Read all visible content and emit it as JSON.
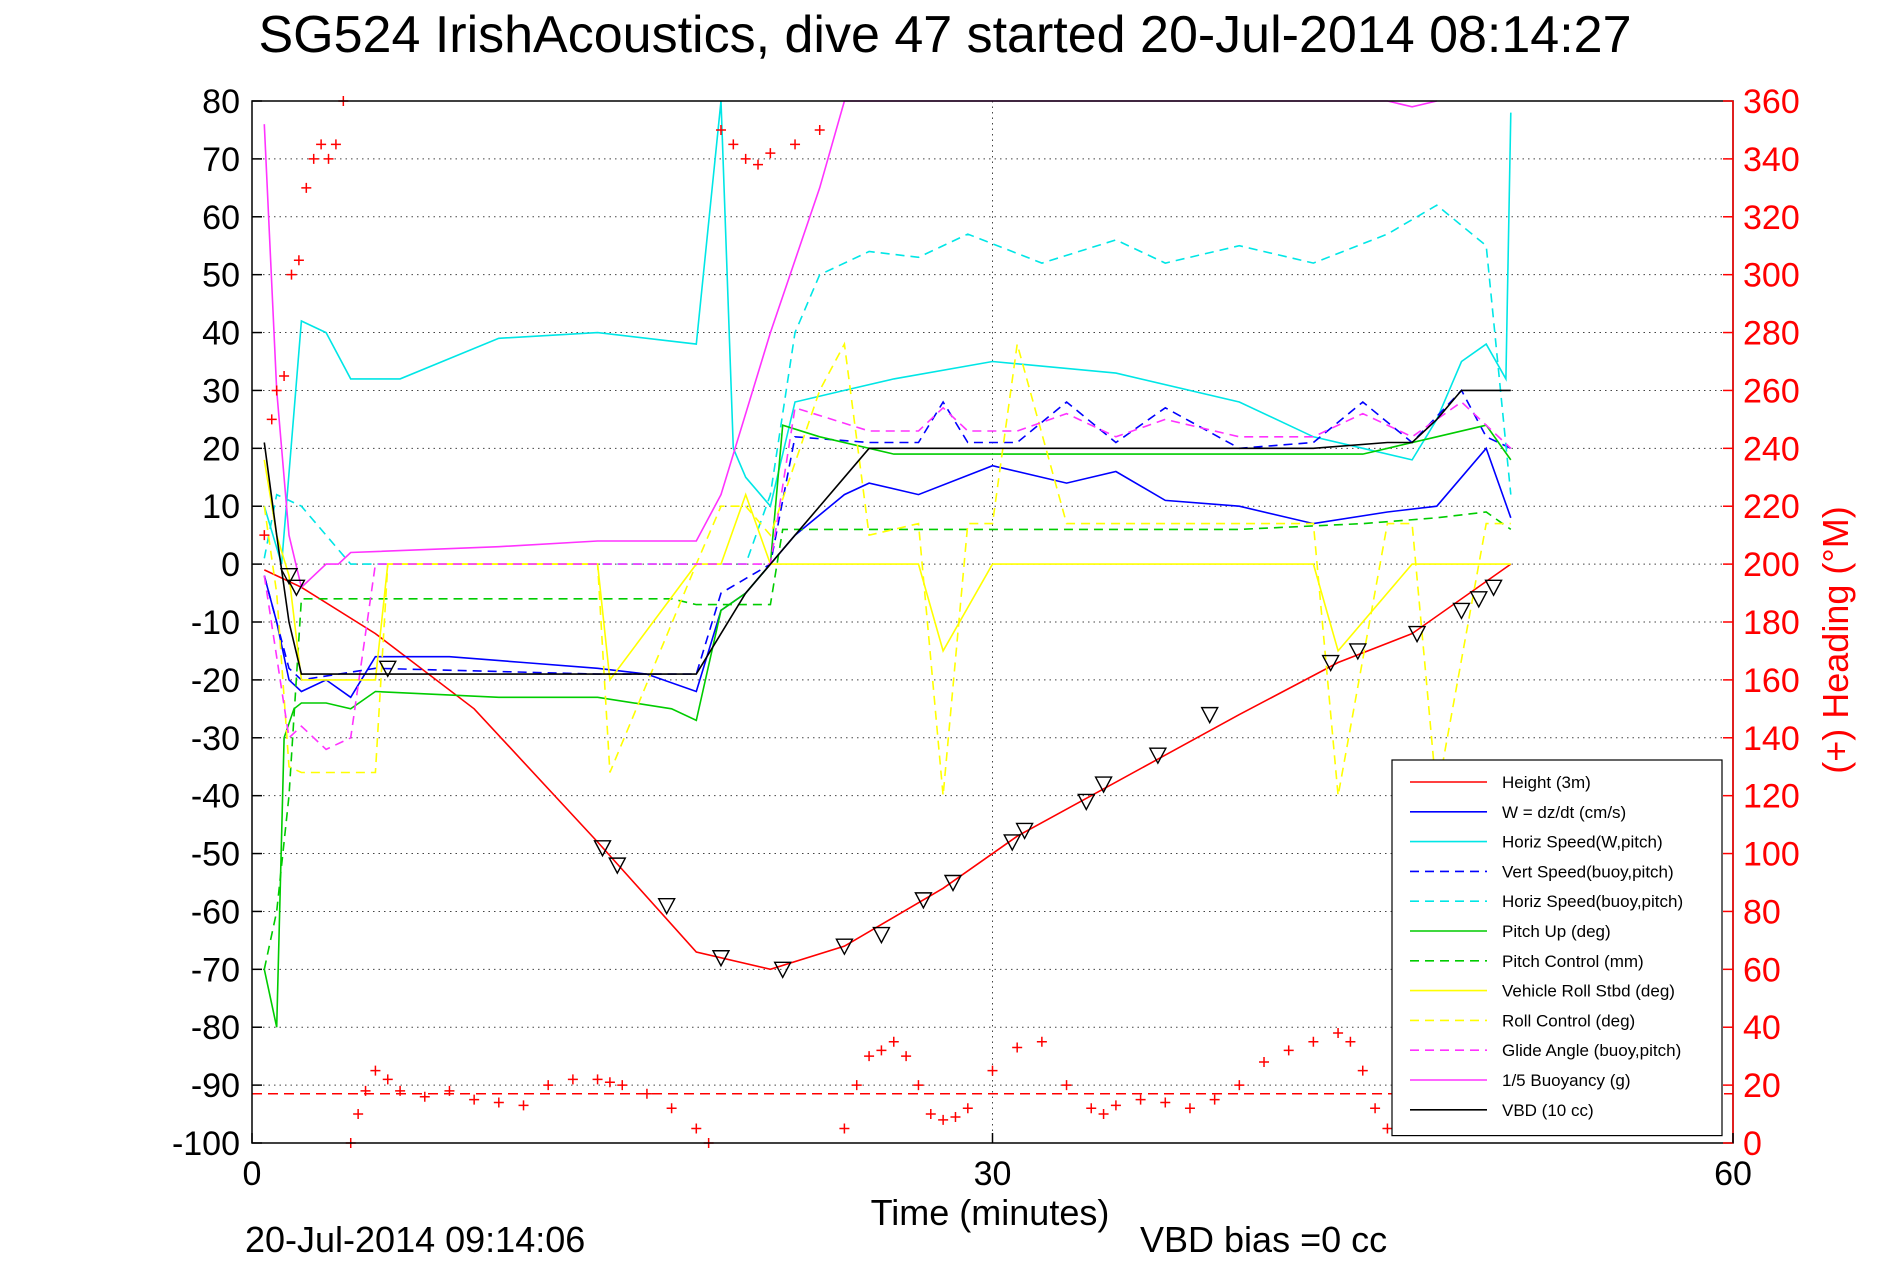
{
  "chart_data": {
    "type": "line",
    "title": "SG524 IrishAcoustics, dive 47 started 20-Jul-2014 08:14:27",
    "xlabel": "Time (minutes)",
    "ylabel_right": "(+) Heading (°M)",
    "footer_left": "20-Jul-2014 09:14:06",
    "footer_right": "VBD bias =0 cc",
    "xlim": [
      0,
      60
    ],
    "ylim": [
      -100,
      80
    ],
    "ylim_right": [
      0,
      360
    ],
    "xticks": [
      "0",
      "30",
      "60"
    ],
    "xtick_values": [
      0,
      30,
      60
    ],
    "yticks": [
      "80",
      "70",
      "60",
      "50",
      "40",
      "30",
      "20",
      "10",
      "0",
      "-10",
      "-20",
      "-30",
      "-40",
      "-50",
      "-60",
      "-70",
      "-80",
      "-90",
      "-100"
    ],
    "ytick_values": [
      80,
      70,
      60,
      50,
      40,
      30,
      20,
      10,
      0,
      -10,
      -20,
      -30,
      -40,
      -50,
      -60,
      -70,
      -80,
      -90,
      -100
    ],
    "yticks_right": [
      "360",
      "340",
      "320",
      "300",
      "280",
      "260",
      "240",
      "220",
      "200",
      "180",
      "160",
      "140",
      "120",
      "100",
      "80",
      "60",
      "40",
      "20",
      "0"
    ],
    "ytick_right_values": [
      360,
      340,
      320,
      300,
      280,
      260,
      240,
      220,
      200,
      180,
      160,
      140,
      120,
      100,
      80,
      60,
      40,
      20,
      0
    ],
    "grid": true,
    "legend_position": "lower-right",
    "reference_line_y": -91.5,
    "series": [
      {
        "name": "Height (3m)",
        "color": "#ff0000",
        "style": "solid",
        "x": [
          0.5,
          2,
          5,
          9,
          14,
          18,
          21,
          24,
          28,
          31,
          34,
          37,
          40,
          44,
          47,
          51
        ],
        "y": [
          -1,
          -4,
          -12,
          -25,
          -48,
          -67,
          -70,
          -66,
          -56,
          -47,
          -40,
          -33,
          -26,
          -17,
          -12,
          0
        ]
      },
      {
        "name": "W = dz/dt (cm/s)",
        "color": "#0000ff",
        "style": "solid",
        "x": [
          0.5,
          1,
          1.5,
          2,
          3,
          4,
          5,
          8,
          11,
          14,
          16,
          18,
          19,
          20,
          21,
          22,
          24,
          25,
          27,
          30,
          33,
          35,
          37,
          40,
          43,
          46,
          48,
          50,
          51
        ],
        "y": [
          -2,
          -10,
          -20,
          -22,
          -20,
          -23,
          -16,
          -16,
          -17,
          -18,
          -19,
          -22,
          -8,
          -5,
          0,
          5,
          12,
          14,
          12,
          17,
          14,
          16,
          11,
          10,
          7,
          9,
          10,
          20,
          8
        ]
      },
      {
        "name": "Horiz Speed(W,pitch)",
        "color": "#00e6e6",
        "style": "solid",
        "x": [
          0.5,
          1.2,
          2,
          3,
          4,
          6,
          10,
          14,
          18,
          19,
          19.5,
          20,
          21,
          22,
          24,
          26,
          30,
          35,
          40,
          43,
          45,
          47,
          48,
          49,
          50,
          50.8,
          51
        ],
        "y": [
          10,
          0,
          42,
          40,
          32,
          32,
          39,
          40,
          38,
          80,
          20,
          15,
          10,
          28,
          30,
          32,
          35,
          33,
          28,
          22,
          20,
          18,
          25,
          35,
          38,
          32,
          78
        ]
      },
      {
        "name": "Vert Speed(buoy,pitch)",
        "color": "#0000ff",
        "style": "dashed",
        "x": [
          0.5,
          1.5,
          2,
          5,
          14,
          18,
          19,
          21,
          22,
          25,
          27,
          28,
          29,
          31,
          33,
          35,
          37,
          40,
          43,
          45,
          47,
          49,
          50,
          51
        ],
        "y": [
          -2,
          -18,
          -20,
          -18,
          -19,
          -19,
          -5,
          0,
          22,
          21,
          21,
          28,
          21,
          21,
          28,
          21,
          27,
          20,
          21,
          28,
          21,
          30,
          22,
          20
        ]
      },
      {
        "name": "Horiz Speed(buoy,pitch)",
        "color": "#00e6e6",
        "style": "dashed",
        "x": [
          0.5,
          1,
          2,
          4,
          6,
          10,
          14,
          18,
          19,
          20,
          21,
          22,
          23,
          25,
          27,
          29,
          32,
          35,
          37,
          40,
          43,
          46,
          48,
          50,
          51
        ],
        "y": [
          1,
          12,
          10,
          0,
          0,
          0,
          0,
          0,
          0,
          0,
          12,
          40,
          50,
          54,
          53,
          57,
          52,
          56,
          52,
          55,
          52,
          57,
          62,
          55,
          12
        ]
      },
      {
        "name": "Pitch Up (deg)",
        "color": "#00cc00",
        "style": "solid",
        "x": [
          0.5,
          1,
          1.3,
          1.7,
          2,
          3,
          4,
          5,
          10,
          14,
          17,
          18,
          19,
          20,
          21,
          21.5,
          23,
          26,
          30,
          35,
          40,
          45,
          48,
          50,
          51
        ],
        "y": [
          -70,
          -80,
          -30,
          -25,
          -24,
          -24,
          -25,
          -22,
          -23,
          -23,
          -25,
          -27,
          -8,
          -5,
          0,
          24,
          22,
          19,
          19,
          19,
          19,
          19,
          22,
          24,
          18
        ]
      },
      {
        "name": "Pitch Control (mm)",
        "color": "#00cc00",
        "style": "dashed",
        "x": [
          0.5,
          1,
          1.5,
          2,
          3,
          5,
          14,
          17,
          18,
          19,
          20,
          21,
          21.5,
          25,
          30,
          35,
          40,
          45,
          48,
          50,
          51
        ],
        "y": [
          -70,
          -60,
          -40,
          -6,
          -6,
          -6,
          -6,
          -6,
          -7,
          -7,
          -7,
          -7,
          6,
          6,
          6,
          6,
          6,
          7,
          8,
          9,
          6
        ]
      },
      {
        "name": "Vehicle Roll Stbd (deg)",
        "color": "#ffff00",
        "style": "solid",
        "x": [
          0.5,
          1,
          1.5,
          2,
          3,
          5,
          5.5,
          10,
          14,
          14.5,
          18,
          19,
          20,
          21,
          25,
          27,
          28,
          30,
          33,
          35,
          40,
          43,
          44,
          47,
          48,
          50,
          51
        ],
        "y": [
          18,
          5,
          -2,
          -20,
          -20,
          -20,
          0,
          0,
          0,
          -20,
          0,
          0,
          12,
          0,
          0,
          0,
          -15,
          0,
          0,
          0,
          0,
          0,
          -15,
          0,
          0,
          0,
          0
        ]
      },
      {
        "name": "Roll Control (deg)",
        "color": "#ffff00",
        "style": "dashed",
        "x": [
          0.5,
          1,
          1.5,
          2,
          4,
          5,
          5.5,
          10,
          14,
          14.5,
          18,
          19,
          20,
          21,
          23,
          24,
          25,
          27,
          28,
          29,
          30,
          31,
          33,
          35,
          40,
          43,
          44,
          46,
          47,
          48,
          50,
          51
        ],
        "y": [
          10,
          -5,
          -35,
          -36,
          -36,
          -36,
          0,
          0,
          0,
          -36,
          0,
          10,
          10,
          5,
          30,
          38,
          5,
          7,
          -40,
          7,
          7,
          38,
          7,
          7,
          7,
          7,
          -40,
          7,
          7,
          -40,
          7,
          7
        ]
      },
      {
        "name": "Glide Angle (buoy,pitch)",
        "color": "#ff33ff",
        "style": "dashed",
        "x": [
          0.5,
          1.5,
          2,
          3,
          4,
          5,
          14,
          18,
          19,
          21,
          22,
          25,
          27,
          28,
          29,
          31,
          33,
          35,
          37,
          40,
          43,
          45,
          47,
          49,
          50,
          51
        ],
        "y": [
          -2,
          -30,
          -28,
          -32,
          -30,
          0,
          0,
          0,
          0,
          0,
          27,
          23,
          23,
          27,
          23,
          23,
          26,
          22,
          25,
          22,
          22,
          26,
          22,
          28,
          24,
          20
        ]
      },
      {
        "name": "1/5 Buoyancy (g)",
        "color": "#ff33ff",
        "style": "solid",
        "x": [
          0.5,
          1,
          1.5,
          2,
          3,
          3.5,
          4,
          10,
          14,
          18,
          19,
          21,
          23,
          24,
          46,
          47,
          48
        ],
        "y": [
          76,
          30,
          5,
          -4,
          0,
          0,
          2,
          3,
          4,
          4,
          12,
          40,
          65,
          80,
          80,
          79,
          80
        ]
      },
      {
        "name": "VBD (10 cc)",
        "color": "#000000",
        "style": "solid",
        "x": [
          0.5,
          1,
          1.5,
          2,
          5,
          10,
          14,
          18,
          19,
          20,
          21,
          22,
          24,
          25,
          30,
          35,
          40,
          43,
          46,
          47,
          48,
          49,
          50,
          51
        ],
        "y": [
          21,
          5,
          -10,
          -19,
          -19,
          -19,
          -19,
          -19,
          -12,
          -5,
          0,
          5,
          15,
          20,
          20,
          20,
          20,
          20,
          21,
          21,
          25,
          30,
          30,
          30
        ]
      }
    ],
    "heading_series": {
      "axis": "right",
      "color": "#ff0000",
      "marker": "+",
      "x": [
        0.5,
        0.8,
        1.0,
        1.3,
        1.6,
        1.9,
        2.2,
        2.5,
        2.8,
        3.1,
        3.4,
        3.7,
        4.0,
        4.3,
        4.6,
        5.0,
        5.5,
        6,
        7,
        8,
        9,
        10,
        11,
        12,
        13,
        14,
        14.5,
        15,
        16,
        17,
        18,
        18.5,
        19,
        19.5,
        20,
        20.5,
        21,
        22,
        23,
        24,
        24.5,
        25,
        25.5,
        26,
        26.5,
        27,
        27.5,
        28,
        28.5,
        29,
        30,
        31,
        32,
        33,
        34,
        34.5,
        35,
        36,
        37,
        38,
        39,
        40,
        41,
        42,
        43,
        44,
        44.5,
        45,
        45.5,
        46,
        47,
        48
      ],
      "y": [
        210,
        250,
        260,
        265,
        300,
        305,
        330,
        340,
        345,
        340,
        345,
        360,
        0,
        10,
        18,
        25,
        22,
        18,
        16,
        18,
        15,
        14,
        13,
        20,
        22,
        22,
        21,
        20,
        17,
        12,
        5,
        0,
        350,
        345,
        340,
        338,
        342,
        345,
        350,
        5,
        20,
        30,
        32,
        35,
        30,
        20,
        10,
        8,
        9,
        12,
        25,
        33,
        35,
        20,
        12,
        10,
        13,
        15,
        14,
        12,
        15,
        20,
        28,
        32,
        35,
        38,
        35,
        25,
        12,
        5,
        15,
        30
      ]
    },
    "markers": {
      "note": "triangle markers along the Height (3m) curve",
      "x": [
        1.5,
        1.8,
        5.5,
        14.2,
        14.8,
        16.8,
        19,
        21.5,
        24,
        25.5,
        27.2,
        28.4,
        30.8,
        31.3,
        33.8,
        34.5,
        36.7,
        38.8,
        43.7,
        44.8,
        47.2,
        49,
        49.7,
        50.3
      ],
      "y": [
        -2,
        -4,
        -18,
        -49,
        -52,
        -59,
        -68,
        -70,
        -66,
        -64,
        -58,
        -55,
        -48,
        -46,
        -41,
        -38,
        -33,
        -26,
        -17,
        -15,
        -12,
        -8,
        -6,
        -4
      ]
    }
  }
}
